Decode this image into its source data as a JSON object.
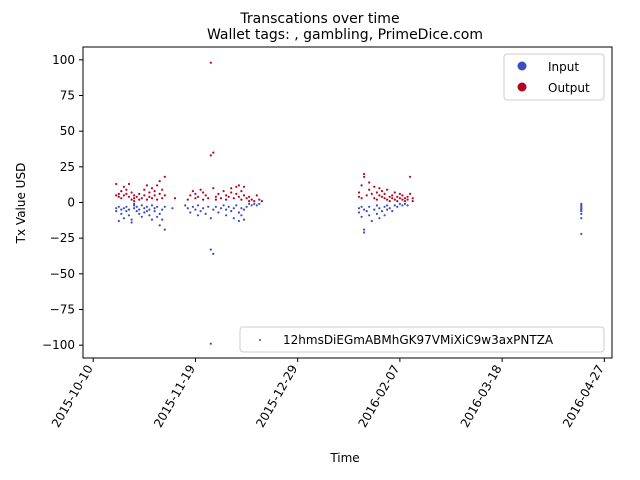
{
  "chart_data": {
    "type": "scatter",
    "title": "Transcations over time",
    "subtitle": "Wallet tags: , gambling, PrimeDice.com",
    "xlabel": "Time",
    "ylabel": "Tx Value USD",
    "xlim": [
      "2015-10-06",
      "2016-04-30"
    ],
    "ylim": [
      -109,
      109
    ],
    "x_ticks": [
      "2015-10-10",
      "2015-11-19",
      "2015-12-29",
      "2016-02-07",
      "2016-03-18",
      "2016-04-27"
    ],
    "y_ticks": [
      -100,
      -75,
      -50,
      -25,
      0,
      25,
      50,
      75,
      100
    ],
    "grid": false,
    "legend_placement": "top-right",
    "wallet_legend_placement": "lower-right",
    "wallet_legend_label": "12hmsDiEGmABMhGK97VMiXiC9w3axPNTZA",
    "series": [
      {
        "name": "Input",
        "color": "#3b4cc0",
        "points": [
          [
            "2015-10-19",
            -4
          ],
          [
            "2015-10-19",
            -6
          ],
          [
            "2015-10-20",
            -13
          ],
          [
            "2015-10-20",
            -3
          ],
          [
            "2015-10-21",
            -5
          ],
          [
            "2015-10-21",
            -8
          ],
          [
            "2015-10-22",
            -4
          ],
          [
            "2015-10-22",
            -11
          ],
          [
            "2015-10-23",
            -6
          ],
          [
            "2015-10-23",
            -3
          ],
          [
            "2015-10-24",
            -9
          ],
          [
            "2015-10-24",
            -5
          ],
          [
            "2015-10-25",
            -12
          ],
          [
            "2015-10-25",
            -14
          ],
          [
            "2015-10-26",
            -4
          ],
          [
            "2015-10-26",
            -1
          ],
          [
            "2015-10-26",
            -2
          ],
          [
            "2015-10-27",
            -6
          ],
          [
            "2015-10-27",
            -3
          ],
          [
            "2015-10-28",
            -5
          ],
          [
            "2015-10-28",
            -8
          ],
          [
            "2015-10-29",
            -2
          ],
          [
            "2015-10-29",
            -10
          ],
          [
            "2015-10-30",
            -4
          ],
          [
            "2015-10-30",
            -7
          ],
          [
            "2015-10-31",
            -3
          ],
          [
            "2015-10-31",
            -6
          ],
          [
            "2015-11-01",
            -5
          ],
          [
            "2015-11-01",
            -9
          ],
          [
            "2015-11-02",
            -2
          ],
          [
            "2015-11-02",
            -12
          ],
          [
            "2015-11-03",
            -4
          ],
          [
            "2015-11-03",
            -6
          ],
          [
            "2015-11-04",
            -10
          ],
          [
            "2015-11-04",
            -3
          ],
          [
            "2015-11-05",
            -8
          ],
          [
            "2015-11-05",
            -16
          ],
          [
            "2015-11-06",
            -5
          ],
          [
            "2015-11-06",
            -12
          ],
          [
            "2015-11-07",
            -19
          ],
          [
            "2015-11-07",
            -3
          ],
          [
            "2015-11-10",
            -4
          ],
          [
            "2015-11-15",
            -2
          ],
          [
            "2015-11-16",
            -4
          ],
          [
            "2015-11-17",
            -7
          ],
          [
            "2015-11-18",
            -3
          ],
          [
            "2015-11-19",
            -5
          ],
          [
            "2015-11-20",
            -9
          ],
          [
            "2015-11-20",
            -2
          ],
          [
            "2015-11-21",
            -6
          ],
          [
            "2015-11-22",
            -4
          ],
          [
            "2015-11-23",
            -8
          ],
          [
            "2015-11-24",
            -3
          ],
          [
            "2015-11-25",
            -11
          ],
          [
            "2015-11-25",
            -33
          ],
          [
            "2015-11-26",
            -36
          ],
          [
            "2015-11-25",
            -99
          ],
          [
            "2015-11-26",
            -5
          ],
          [
            "2015-11-27",
            -3
          ],
          [
            "2015-11-28",
            -7
          ],
          [
            "2015-11-29",
            -4
          ],
          [
            "2015-11-30",
            -2
          ],
          [
            "2015-12-01",
            -9
          ],
          [
            "2015-12-01",
            -5
          ],
          [
            "2015-12-02",
            -3
          ],
          [
            "2015-12-03",
            -6
          ],
          [
            "2015-12-04",
            -11
          ],
          [
            "2015-12-04",
            -4
          ],
          [
            "2015-12-05",
            -2
          ],
          [
            "2015-12-06",
            -7
          ],
          [
            "2015-12-06",
            -13
          ],
          [
            "2015-12-07",
            -4
          ],
          [
            "2015-12-07",
            -9
          ],
          [
            "2015-12-08",
            -5
          ],
          [
            "2015-12-08",
            -12
          ],
          [
            "2015-12-09",
            -3
          ],
          [
            "2015-12-10",
            -1
          ],
          [
            "2015-12-11",
            -2
          ],
          [
            "2015-12-12",
            -1
          ],
          [
            "2015-12-13",
            -2
          ],
          [
            "2015-12-14",
            -1
          ],
          [
            "2016-01-22",
            -4
          ],
          [
            "2016-01-22",
            -7
          ],
          [
            "2016-01-23",
            -3
          ],
          [
            "2016-01-23",
            -10
          ],
          [
            "2016-01-24",
            -5
          ],
          [
            "2016-01-24",
            -19
          ],
          [
            "2016-01-24",
            -21
          ],
          [
            "2016-01-25",
            -6
          ],
          [
            "2016-01-26",
            -3
          ],
          [
            "2016-01-26",
            -9
          ],
          [
            "2016-01-27",
            -13
          ],
          [
            "2016-01-28",
            -5
          ],
          [
            "2016-01-29",
            -2
          ],
          [
            "2016-01-29",
            -8
          ],
          [
            "2016-01-30",
            -4
          ],
          [
            "2016-01-30",
            -11
          ],
          [
            "2016-01-31",
            -6
          ],
          [
            "2016-02-01",
            -3
          ],
          [
            "2016-02-01",
            -9
          ],
          [
            "2016-02-02",
            -5
          ],
          [
            "2016-02-02",
            -2
          ],
          [
            "2016-02-03",
            -4
          ],
          [
            "2016-02-04",
            -6
          ],
          [
            "2016-02-05",
            -2
          ],
          [
            "2016-02-06",
            -3
          ],
          [
            "2016-02-07",
            -1
          ],
          [
            "2016-02-08",
            -2
          ],
          [
            "2016-02-09",
            -1
          ],
          [
            "2016-02-10",
            -2
          ],
          [
            "2016-04-18",
            -1
          ],
          [
            "2016-04-18",
            -2
          ],
          [
            "2016-04-18",
            -3
          ],
          [
            "2016-04-18",
            -4
          ],
          [
            "2016-04-18",
            -5
          ],
          [
            "2016-04-18",
            -6
          ],
          [
            "2016-04-18",
            -8
          ],
          [
            "2016-04-18",
            -11
          ],
          [
            "2016-04-18",
            -22
          ]
        ]
      },
      {
        "name": "Output",
        "color": "#b40426",
        "points": [
          [
            "2015-10-19",
            5
          ],
          [
            "2015-10-19",
            13
          ],
          [
            "2015-10-20",
            4
          ],
          [
            "2015-10-20",
            6
          ],
          [
            "2015-10-21",
            8
          ],
          [
            "2015-10-21",
            3
          ],
          [
            "2015-10-22",
            11
          ],
          [
            "2015-10-22",
            5
          ],
          [
            "2015-10-23",
            6
          ],
          [
            "2015-10-23",
            9
          ],
          [
            "2015-10-24",
            4
          ],
          [
            "2015-10-24",
            13
          ],
          [
            "2015-10-25",
            2
          ],
          [
            "2015-10-25",
            7
          ],
          [
            "2015-10-26",
            1
          ],
          [
            "2015-10-26",
            3
          ],
          [
            "2015-10-26",
            5
          ],
          [
            "2015-10-27",
            4
          ],
          [
            "2015-10-28",
            2
          ],
          [
            "2015-10-28",
            6
          ],
          [
            "2015-10-29",
            3
          ],
          [
            "2015-10-30",
            9
          ],
          [
            "2015-10-30",
            5
          ],
          [
            "2015-10-31",
            2
          ],
          [
            "2015-10-31",
            12
          ],
          [
            "2015-11-01",
            4
          ],
          [
            "2015-11-01",
            7
          ],
          [
            "2015-11-02",
            3
          ],
          [
            "2015-11-02",
            10
          ],
          [
            "2015-11-03",
            5
          ],
          [
            "2015-11-03",
            8
          ],
          [
            "2015-11-04",
            2
          ],
          [
            "2015-11-04",
            12
          ],
          [
            "2015-11-05",
            6
          ],
          [
            "2015-11-05",
            15
          ],
          [
            "2015-11-06",
            3
          ],
          [
            "2015-11-06",
            9
          ],
          [
            "2015-11-07",
            18
          ],
          [
            "2015-11-07",
            5
          ],
          [
            "2015-11-11",
            3
          ],
          [
            "2015-11-16",
            2
          ],
          [
            "2015-11-17",
            5
          ],
          [
            "2015-11-18",
            8
          ],
          [
            "2015-11-19",
            3
          ],
          [
            "2015-11-19",
            6
          ],
          [
            "2015-11-20",
            4
          ],
          [
            "2015-11-21",
            9
          ],
          [
            "2015-11-22",
            2
          ],
          [
            "2015-11-22",
            7
          ],
          [
            "2015-11-23",
            5
          ],
          [
            "2015-11-24",
            3
          ],
          [
            "2015-11-25",
            98
          ],
          [
            "2015-11-25",
            33
          ],
          [
            "2015-11-26",
            35
          ],
          [
            "2015-11-26",
            10
          ],
          [
            "2015-11-27",
            4
          ],
          [
            "2015-11-27",
            2
          ],
          [
            "2015-11-28",
            6
          ],
          [
            "2015-11-29",
            3
          ],
          [
            "2015-11-30",
            8
          ],
          [
            "2015-12-01",
            5
          ],
          [
            "2015-12-01",
            2
          ],
          [
            "2015-12-02",
            4
          ],
          [
            "2015-12-03",
            7
          ],
          [
            "2015-12-03",
            10
          ],
          [
            "2015-12-04",
            3
          ],
          [
            "2015-12-05",
            6
          ],
          [
            "2015-12-05",
            11
          ],
          [
            "2015-12-06",
            4
          ],
          [
            "2015-12-06",
            12
          ],
          [
            "2015-12-07",
            2
          ],
          [
            "2015-12-07",
            8
          ],
          [
            "2015-12-08",
            5
          ],
          [
            "2015-12-08",
            11
          ],
          [
            "2015-12-09",
            3
          ],
          [
            "2015-12-10",
            1
          ],
          [
            "2015-12-10",
            4
          ],
          [
            "2015-12-11",
            2
          ],
          [
            "2015-12-12",
            1
          ],
          [
            "2015-12-13",
            5
          ],
          [
            "2015-12-14",
            2
          ],
          [
            "2015-12-15",
            1
          ],
          [
            "2016-01-22",
            4
          ],
          [
            "2016-01-22",
            7
          ],
          [
            "2016-01-23",
            3
          ],
          [
            "2016-01-23",
            12
          ],
          [
            "2016-01-24",
            20
          ],
          [
            "2016-01-24",
            18
          ],
          [
            "2016-01-25",
            5
          ],
          [
            "2016-01-26",
            14
          ],
          [
            "2016-01-26",
            9
          ],
          [
            "2016-01-27",
            6
          ],
          [
            "2016-01-28",
            3
          ],
          [
            "2016-01-28",
            11
          ],
          [
            "2016-01-29",
            7
          ],
          [
            "2016-01-29",
            2
          ],
          [
            "2016-01-30",
            5
          ],
          [
            "2016-01-30",
            10
          ],
          [
            "2016-01-31",
            4
          ],
          [
            "2016-01-31",
            8
          ],
          [
            "2016-02-01",
            3
          ],
          [
            "2016-02-01",
            6
          ],
          [
            "2016-02-02",
            2
          ],
          [
            "2016-02-02",
            9
          ],
          [
            "2016-02-03",
            4
          ],
          [
            "2016-02-03",
            1
          ],
          [
            "2016-02-04",
            3
          ],
          [
            "2016-02-04",
            5
          ],
          [
            "2016-02-05",
            2
          ],
          [
            "2016-02-05",
            7
          ],
          [
            "2016-02-06",
            4
          ],
          [
            "2016-02-06",
            1
          ],
          [
            "2016-02-07",
            3
          ],
          [
            "2016-02-07",
            6
          ],
          [
            "2016-02-08",
            2
          ],
          [
            "2016-02-08",
            5
          ],
          [
            "2016-02-09",
            3
          ],
          [
            "2016-02-09",
            1
          ],
          [
            "2016-02-10",
            4
          ],
          [
            "2016-02-10",
            2
          ],
          [
            "2016-02-11",
            18
          ],
          [
            "2016-02-11",
            6
          ],
          [
            "2016-02-12",
            3
          ],
          [
            "2016-02-12",
            1
          ]
        ]
      }
    ]
  }
}
